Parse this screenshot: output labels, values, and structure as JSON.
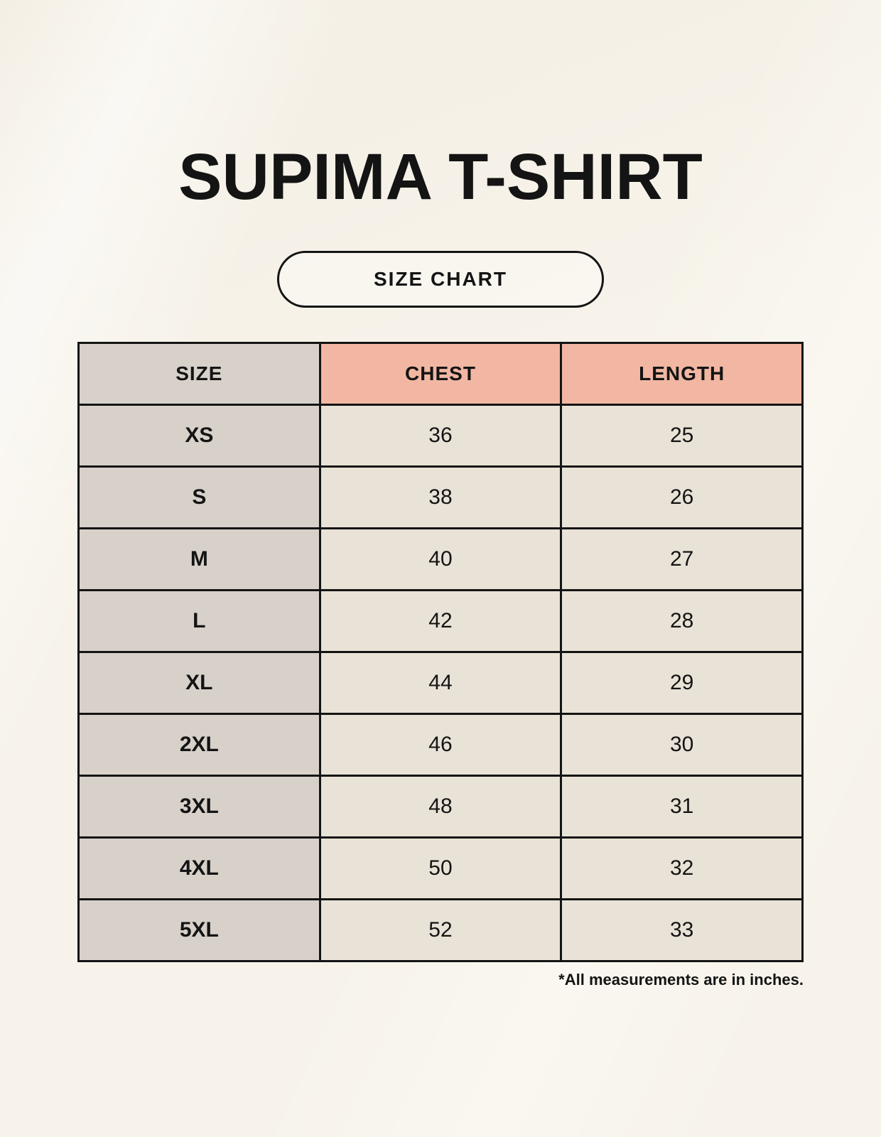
{
  "page": {
    "title": "SUPIMA T-SHIRT",
    "button_label": "SIZE CHART",
    "footnote": "*All measurements are in inches."
  },
  "chart_data": {
    "type": "table",
    "title": "SUPIMA T-SHIRT",
    "subtitle": "SIZE CHART",
    "units": "inches",
    "columns": [
      "SIZE",
      "CHEST",
      "LENGTH"
    ],
    "rows": [
      {
        "size": "XS",
        "chest": 36,
        "length": 25
      },
      {
        "size": "S",
        "chest": 38,
        "length": 26
      },
      {
        "size": "M",
        "chest": 40,
        "length": 27
      },
      {
        "size": "L",
        "chest": 42,
        "length": 28
      },
      {
        "size": "XL",
        "chest": 44,
        "length": 29
      },
      {
        "size": "2XL",
        "chest": 46,
        "length": 30
      },
      {
        "size": "3XL",
        "chest": 48,
        "length": 31
      },
      {
        "size": "4XL",
        "chest": 50,
        "length": 32
      },
      {
        "size": "5XL",
        "chest": 52,
        "length": 33
      }
    ],
    "annotations": [
      "*All measurements are in inches."
    ]
  },
  "colors": {
    "background": "#f7f3ea",
    "header_accent": "#f1b7a3",
    "size_column": "#d8d1ca",
    "data_cell": "#e9e2d6",
    "border": "#141414",
    "text": "#141414"
  }
}
